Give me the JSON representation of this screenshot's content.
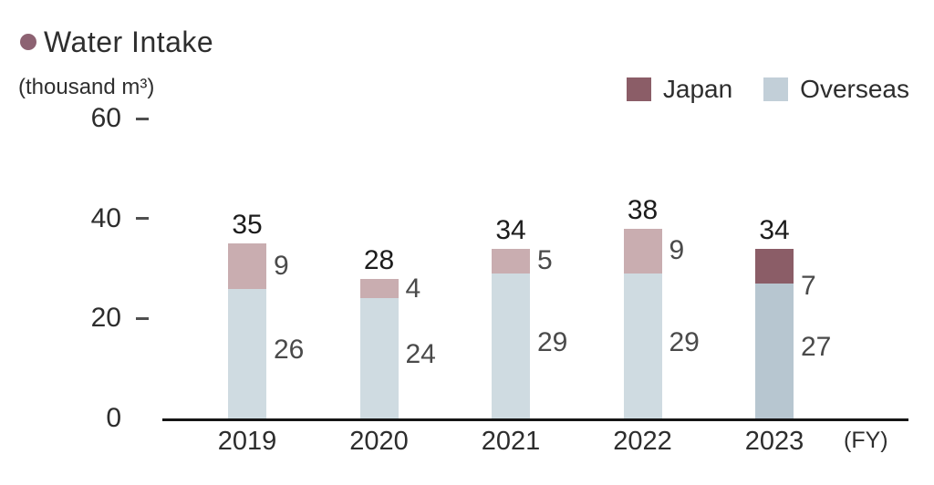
{
  "chart_data": {
    "type": "bar",
    "stacked": true,
    "title": "Water Intake",
    "ylabel": "(thousand m³)",
    "xlabel": "(FY)",
    "categories": [
      "2019",
      "2020",
      "2021",
      "2022",
      "2023"
    ],
    "series": [
      {
        "name": "Japan",
        "values": [
          9,
          4,
          5,
          9,
          7
        ]
      },
      {
        "name": "Overseas",
        "values": [
          26,
          24,
          29,
          29,
          27
        ]
      }
    ],
    "totals": [
      35,
      28,
      34,
      38,
      34
    ],
    "ylim": [
      0,
      60
    ],
    "yticks": [
      0,
      20,
      40,
      60
    ],
    "grid": false,
    "legend_position": "top-right",
    "highlight_category": "2023",
    "colors": {
      "title_bullet": "#8d6272",
      "japan": "#8b5d67",
      "japan_muted": "#c9adb0",
      "overseas": "#b7c6d0",
      "overseas_muted": "#cfdbe1",
      "overseas_legend": "#c2cfd8",
      "axis_line": "#161616"
    }
  }
}
